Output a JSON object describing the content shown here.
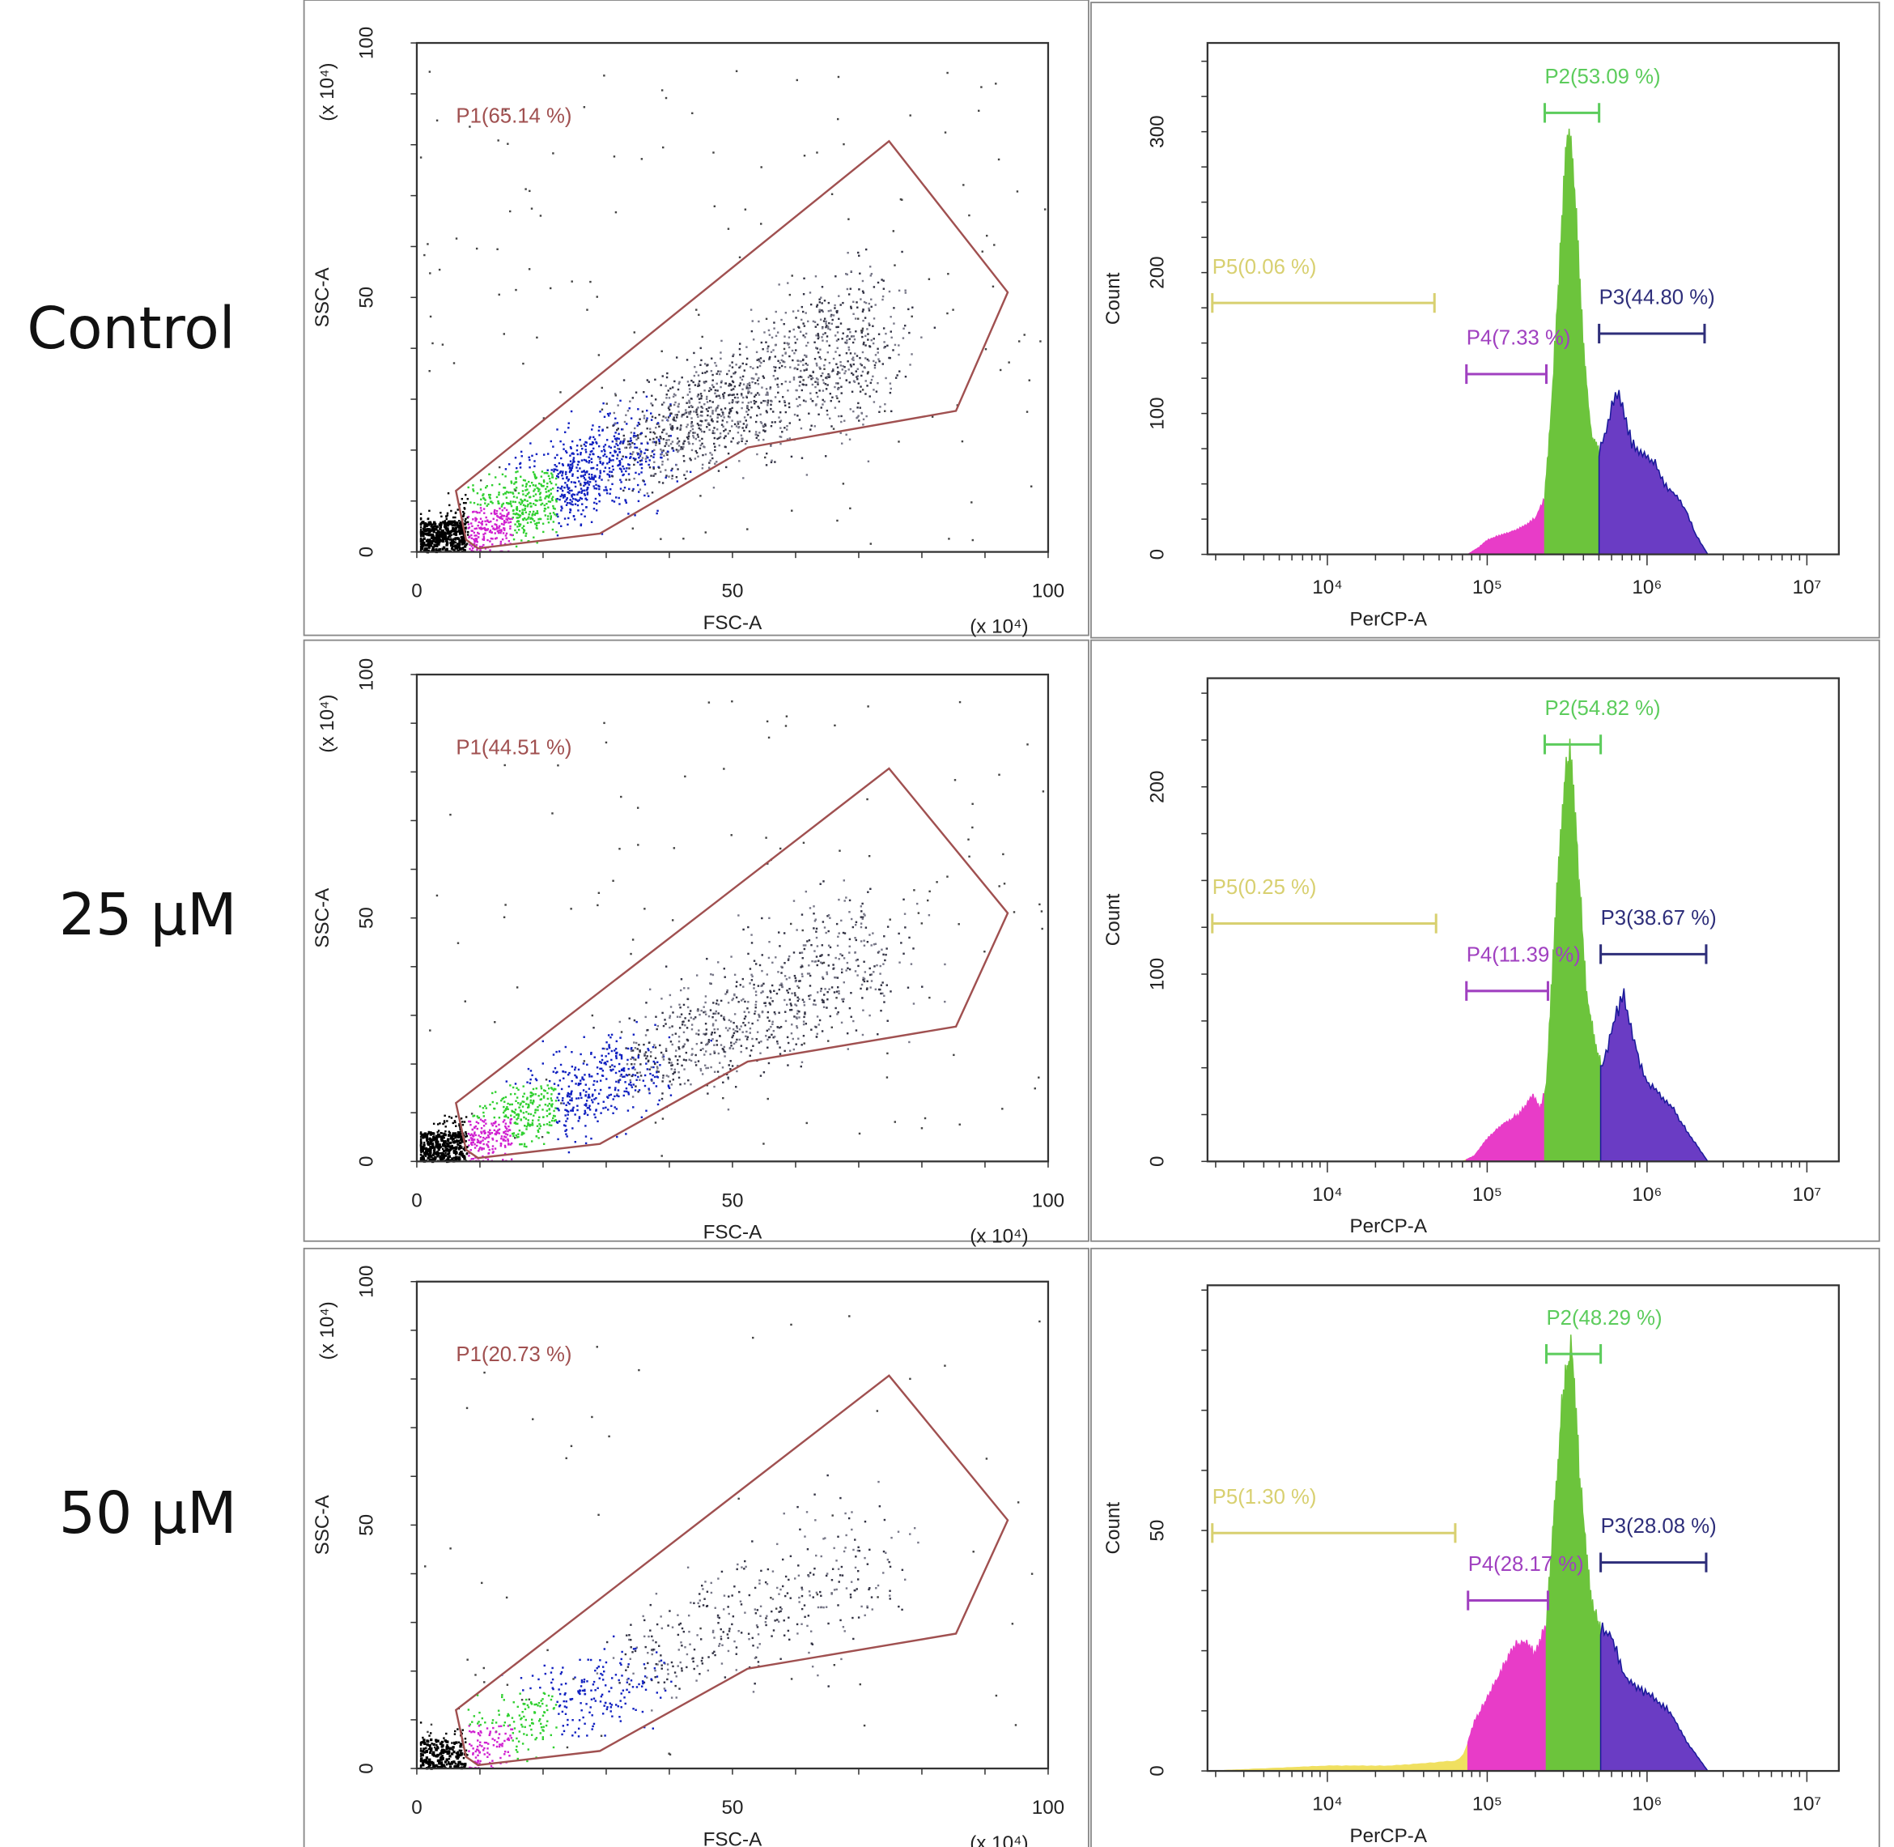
{
  "row_labels": [
    "Control",
    "25 µM",
    "50 µM"
  ],
  "chart_data": [
    {
      "type": "scatter",
      "sample": "Control",
      "xlabel": "FSC-A",
      "ylabel": "SSC-A",
      "x_multiplier": "(x 10⁴)",
      "y_multiplier": "(x 10⁴)",
      "xlim": [
        0,
        100
      ],
      "ylim": [
        0,
        100
      ],
      "xticks": [
        "0",
        "50",
        "100"
      ],
      "yticks": [
        "0",
        "50",
        "100"
      ],
      "gate": {
        "label": "P1(65.14 %)",
        "percent": 65.14,
        "polygon": [
          [
            6.2,
            12
          ],
          [
            74.8,
            80.7
          ],
          [
            93.6,
            51
          ],
          [
            85.4,
            27.7
          ],
          [
            52.4,
            20.5
          ],
          [
            29,
            3.6
          ],
          [
            9.7,
            0.7
          ],
          [
            7.8,
            2.4
          ]
        ]
      },
      "density": 1.0
    },
    {
      "type": "scatter",
      "sample": "25 µM",
      "xlabel": "FSC-A",
      "ylabel": "SSC-A",
      "x_multiplier": "(x 10⁴)",
      "y_multiplier": "(x 10⁴)",
      "xlim": [
        0,
        100
      ],
      "ylim": [
        0,
        100
      ],
      "xticks": [
        "0",
        "50",
        "100"
      ],
      "yticks": [
        "0",
        "50",
        "100"
      ],
      "gate": {
        "label": "P1(44.51 %)",
        "percent": 44.51,
        "polygon": [
          [
            6.2,
            12
          ],
          [
            74.8,
            80.7
          ],
          [
            93.6,
            51
          ],
          [
            85.4,
            27.7
          ],
          [
            52.4,
            20.5
          ],
          [
            29,
            3.6
          ],
          [
            9.7,
            0.7
          ],
          [
            7.8,
            2.4
          ]
        ]
      },
      "density": 0.7
    },
    {
      "type": "scatter",
      "sample": "50 µM",
      "xlabel": "FSC-A",
      "ylabel": "SSC-A",
      "x_multiplier": "(x 10⁴)",
      "y_multiplier": "(x 10⁴)",
      "xlim": [
        0,
        100
      ],
      "ylim": [
        0,
        100
      ],
      "xticks": [
        "0",
        "50",
        "100"
      ],
      "yticks": [
        "0",
        "50",
        "100"
      ],
      "gate": {
        "label": "P1(20.73 %)",
        "percent": 20.73,
        "polygon": [
          [
            6.2,
            12
          ],
          [
            74.8,
            80.7
          ],
          [
            93.6,
            51
          ],
          [
            85.4,
            27.7
          ],
          [
            52.4,
            20.5
          ],
          [
            29,
            3.6
          ],
          [
            9.7,
            0.7
          ],
          [
            7.8,
            2.4
          ]
        ]
      },
      "density": 0.35
    },
    {
      "type": "area",
      "sample": "Control",
      "xlabel": "PerCP-A",
      "ylabel": "Count",
      "xscale": "log",
      "xlim_log10": [
        3.25,
        7.2
      ],
      "ylim": [
        0,
        363
      ],
      "xticks": [
        "10⁴",
        "10⁵",
        "10⁶",
        "10⁷"
      ],
      "yticks": [
        0,
        100,
        200,
        300
      ],
      "gates": [
        {
          "name": "P2",
          "label": "P2(53.09 %)",
          "range_log10": [
            5.36,
            5.7
          ],
          "color": "#5ccc5c"
        },
        {
          "name": "P3",
          "label": "P3(44.80 %)",
          "range_log10": [
            5.7,
            6.36
          ],
          "color": "#2e2e7a"
        },
        {
          "name": "P4",
          "label": "P4(7.33 %)",
          "range_log10": [
            4.87,
            5.37
          ],
          "color": "#a040c0"
        },
        {
          "name": "P5",
          "label": "P5(0.06 %)",
          "range_log10": [
            3.28,
            4.67
          ],
          "color": "#d8d070"
        }
      ],
      "histogram_log10x_count": [
        [
          4.88,
          0
        ],
        [
          4.95,
          5
        ],
        [
          5.0,
          10
        ],
        [
          5.1,
          14
        ],
        [
          5.2,
          18
        ],
        [
          5.3,
          25
        ],
        [
          5.36,
          40
        ],
        [
          5.4,
          100
        ],
        [
          5.45,
          200
        ],
        [
          5.5,
          295
        ],
        [
          5.52,
          300
        ],
        [
          5.55,
          250
        ],
        [
          5.6,
          150
        ],
        [
          5.65,
          85
        ],
        [
          5.7,
          72
        ],
        [
          5.75,
          90
        ],
        [
          5.8,
          115
        ],
        [
          5.85,
          105
        ],
        [
          5.9,
          80
        ],
        [
          5.98,
          70
        ],
        [
          6.05,
          65
        ],
        [
          6.12,
          48
        ],
        [
          6.18,
          42
        ],
        [
          6.25,
          30
        ],
        [
          6.3,
          15
        ],
        [
          6.38,
          0
        ]
      ]
    },
    {
      "type": "area",
      "sample": "25 µM",
      "xlabel": "PerCP-A",
      "ylabel": "Count",
      "xscale": "log",
      "xlim_log10": [
        3.25,
        7.2
      ],
      "ylim": [
        0,
        258
      ],
      "xticks": [
        "10⁴",
        "10⁵",
        "10⁶",
        "10⁷"
      ],
      "yticks": [
        0,
        100,
        200
      ],
      "gates": [
        {
          "name": "P2",
          "label": "P2(54.82 %)",
          "range_log10": [
            5.36,
            5.71
          ],
          "color": "#5ccc5c"
        },
        {
          "name": "P3",
          "label": "P3(38.67 %)",
          "range_log10": [
            5.71,
            6.37
          ],
          "color": "#2e2e7a"
        },
        {
          "name": "P4",
          "label": "P4(11.39 %)",
          "range_log10": [
            4.87,
            5.38
          ],
          "color": "#a040c0"
        },
        {
          "name": "P5",
          "label": "P5(0.25 %)",
          "range_log10": [
            3.28,
            4.68
          ],
          "color": "#d8d070"
        }
      ],
      "histogram_log10x_count": [
        [
          4.85,
          0
        ],
        [
          4.92,
          3
        ],
        [
          5.0,
          12
        ],
        [
          5.1,
          20
        ],
        [
          5.2,
          25
        ],
        [
          5.28,
          35
        ],
        [
          5.33,
          28
        ],
        [
          5.37,
          40
        ],
        [
          5.42,
          120
        ],
        [
          5.48,
          200
        ],
        [
          5.52,
          215
        ],
        [
          5.56,
          170
        ],
        [
          5.62,
          90
        ],
        [
          5.68,
          60
        ],
        [
          5.72,
          50
        ],
        [
          5.78,
          70
        ],
        [
          5.85,
          90
        ],
        [
          5.9,
          70
        ],
        [
          5.98,
          45
        ],
        [
          6.05,
          38
        ],
        [
          6.15,
          30
        ],
        [
          6.22,
          20
        ],
        [
          6.3,
          10
        ],
        [
          6.38,
          0
        ]
      ]
    },
    {
      "type": "area",
      "sample": "50 µM",
      "xlabel": "PerCP-A",
      "ylabel": "Count",
      "xscale": "log",
      "xlim_log10": [
        3.25,
        7.2
      ],
      "ylim": [
        0,
        101
      ],
      "xticks": [
        "10⁴",
        "10⁵",
        "10⁶",
        "10⁷"
      ],
      "yticks": [
        0,
        50
      ],
      "gates": [
        {
          "name": "P2",
          "label": "P2(48.29 %)",
          "range_log10": [
            5.37,
            5.71
          ],
          "color": "#5ccc5c"
        },
        {
          "name": "P3",
          "label": "P3(28.08 %)",
          "range_log10": [
            5.71,
            6.37
          ],
          "color": "#2e2e7a"
        },
        {
          "name": "P4",
          "label": "P4(28.17 %)",
          "range_log10": [
            4.88,
            5.38
          ],
          "color": "#a040c0"
        },
        {
          "name": "P5",
          "label": "P5(1.30 %)",
          "range_log10": [
            3.28,
            4.8
          ],
          "color": "#d8d070"
        }
      ],
      "histogram_log10x_count": [
        [
          3.3,
          0
        ],
        [
          4.0,
          1
        ],
        [
          4.4,
          1
        ],
        [
          4.8,
          2
        ],
        [
          4.85,
          3
        ],
        [
          4.92,
          10
        ],
        [
          5.0,
          15
        ],
        [
          5.08,
          20
        ],
        [
          5.15,
          25
        ],
        [
          5.22,
          27
        ],
        [
          5.3,
          24
        ],
        [
          5.37,
          30
        ],
        [
          5.42,
          55
        ],
        [
          5.48,
          80
        ],
        [
          5.53,
          88
        ],
        [
          5.58,
          60
        ],
        [
          5.65,
          35
        ],
        [
          5.7,
          30
        ],
        [
          5.78,
          28
        ],
        [
          5.85,
          20
        ],
        [
          5.95,
          17
        ],
        [
          6.05,
          15
        ],
        [
          6.15,
          12
        ],
        [
          6.25,
          6
        ],
        [
          6.38,
          0
        ]
      ]
    }
  ],
  "colors": {
    "gate": "#a05050",
    "p2": "#5ccc5c",
    "p3": "#2e2e7a",
    "p4": "#a040c0",
    "p5": "#d8d070",
    "fill_p2": "#6cc43c",
    "fill_p3": "#6a3cc4",
    "fill_p4": "#e83cc8",
    "fill_p5": "#f0e060"
  }
}
